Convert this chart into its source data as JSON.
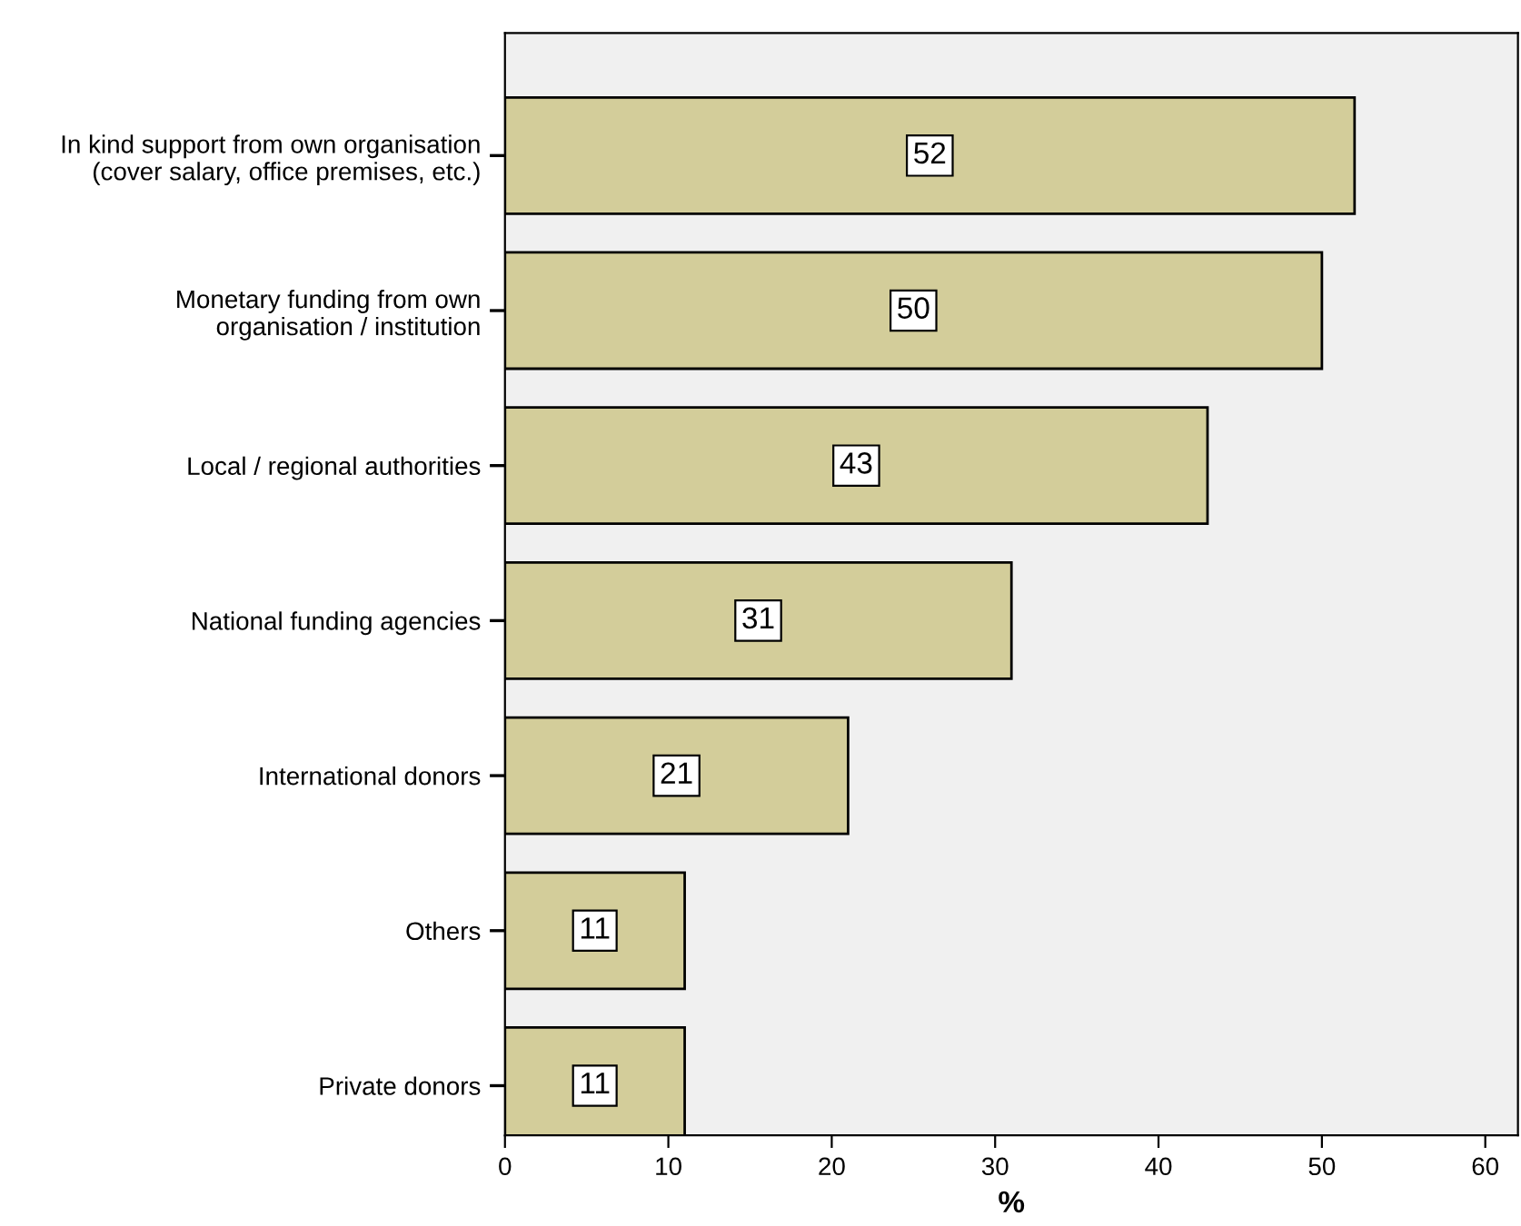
{
  "chart_data": {
    "type": "bar",
    "orientation": "horizontal",
    "xlabel": "%",
    "categories": [
      "In kind support from own organisation\n(cover salary, office premises, etc.)",
      "Monetary funding from own\norganisation / institution",
      "Local / regional authorities",
      "National funding agencies",
      "International donors",
      "Others",
      "Private donors"
    ],
    "values": [
      52,
      50,
      43,
      31,
      21,
      11,
      11
    ],
    "color": "#d3cd9a",
    "xlim": [
      0,
      62
    ],
    "xticks": [
      0,
      10,
      20,
      30,
      40,
      50,
      60
    ],
    "data_labels": true,
    "grid": false
  }
}
